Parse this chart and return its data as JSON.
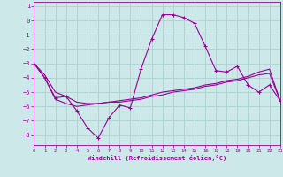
{
  "xlabel": "Windchill (Refroidissement éolien,°C)",
  "background_color": "#cce8e8",
  "grid_color": "#aacccc",
  "line_color": "#990099",
  "xlim": [
    0,
    23
  ],
  "ylim": [
    -8.7,
    1.3
  ],
  "yticks": [
    1,
    0,
    -1,
    -2,
    -3,
    -4,
    -5,
    -6,
    -7,
    -8
  ],
  "xticks": [
    0,
    1,
    2,
    3,
    4,
    5,
    6,
    7,
    8,
    9,
    10,
    11,
    12,
    13,
    14,
    15,
    16,
    17,
    18,
    19,
    20,
    21,
    22,
    23
  ],
  "line1_x": [
    0,
    1,
    2,
    3,
    4,
    5,
    6,
    7,
    8,
    9,
    10,
    11,
    12,
    13,
    14,
    15,
    16,
    17,
    18,
    19,
    20,
    21,
    22,
    23
  ],
  "line1_y": [
    -3.0,
    -4.0,
    -5.4,
    -5.3,
    -6.3,
    -7.5,
    -8.2,
    -6.8,
    -5.9,
    -6.1,
    -3.4,
    -1.3,
    0.4,
    0.4,
    0.2,
    -0.2,
    -1.8,
    -3.5,
    -3.6,
    -3.2,
    -4.5,
    -5.0,
    -4.5,
    -5.6
  ],
  "line2_x": [
    0,
    1,
    2,
    3,
    4,
    5,
    6,
    7,
    8,
    9,
    10,
    11,
    12,
    13,
    14,
    15,
    16,
    17,
    18,
    19,
    20,
    21,
    22,
    23
  ],
  "line2_y": [
    -3.0,
    -3.8,
    -5.0,
    -5.3,
    -5.7,
    -5.8,
    -5.8,
    -5.7,
    -5.6,
    -5.5,
    -5.4,
    -5.2,
    -5.0,
    -4.9,
    -4.8,
    -4.7,
    -4.5,
    -4.4,
    -4.2,
    -4.1,
    -3.9,
    -3.6,
    -3.4,
    -5.6
  ],
  "line3_x": [
    0,
    1,
    2,
    3,
    4,
    5,
    6,
    7,
    8,
    9,
    10,
    11,
    12,
    13,
    14,
    15,
    16,
    17,
    18,
    19,
    20,
    21,
    22,
    23
  ],
  "line3_y": [
    -3.0,
    -4.0,
    -5.5,
    -5.8,
    -6.0,
    -5.9,
    -5.8,
    -5.7,
    -5.7,
    -5.6,
    -5.5,
    -5.3,
    -5.2,
    -5.0,
    -4.9,
    -4.8,
    -4.6,
    -4.5,
    -4.3,
    -4.2,
    -4.0,
    -3.8,
    -3.7,
    -5.6
  ]
}
